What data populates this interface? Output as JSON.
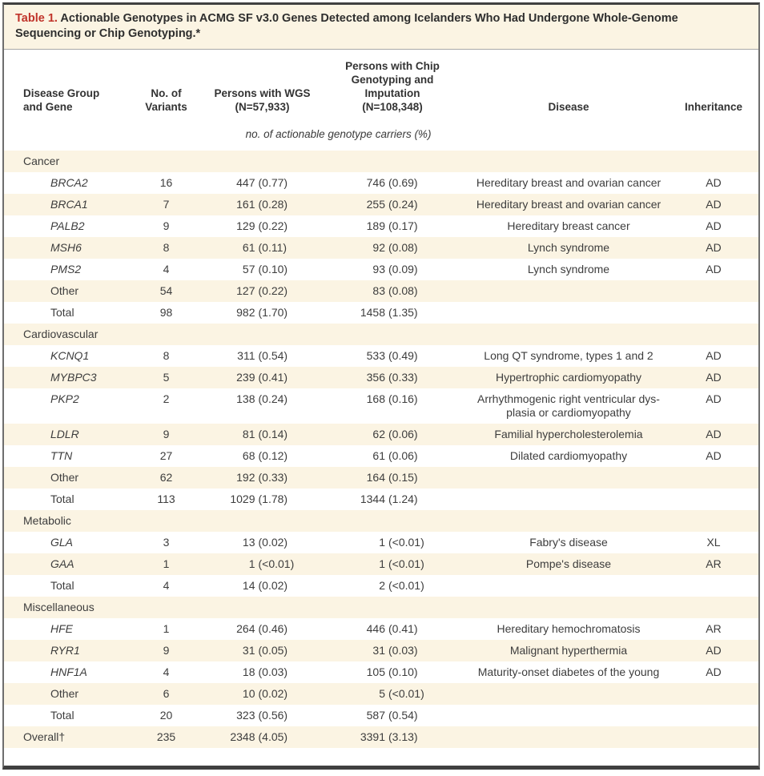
{
  "table": {
    "label": "Table 1.",
    "title": "Actionable Genotypes in ACMG SF v3.0 Genes Detected among Icelanders Who Had Undergone Whole-Genome Sequencing or Chip Genotyping.*",
    "columns": [
      {
        "key": "gene",
        "label": "Disease Group\nand Gene"
      },
      {
        "key": "variants",
        "label": "No. of\nVariants"
      },
      {
        "key": "wgs",
        "label": "Persons with WGS\n(N=57,933)"
      },
      {
        "key": "chip",
        "label": "Persons with Chip\nGenotyping and\nImputation\n(N=108,348)"
      },
      {
        "key": "disease",
        "label": "Disease"
      },
      {
        "key": "inheritance",
        "label": "Inheritance"
      }
    ],
    "units_note": "no. of actionable genotype carriers (%)",
    "sections": [
      {
        "name": "Cancer",
        "rows": [
          {
            "gene": "BRCA2",
            "italic": true,
            "variants": "16",
            "wgs": "447 (0.77)",
            "chip": "746 (0.69)",
            "disease": "Hereditary breast and ovarian cancer",
            "inheritance": "AD"
          },
          {
            "gene": "BRCA1",
            "italic": true,
            "variants": "7",
            "wgs": "161 (0.28)",
            "chip": "255 (0.24)",
            "disease": "Hereditary breast and ovarian cancer",
            "inheritance": "AD"
          },
          {
            "gene": "PALB2",
            "italic": true,
            "variants": "9",
            "wgs": "129 (0.22)",
            "chip": "189 (0.17)",
            "disease": "Hereditary breast cancer",
            "inheritance": "AD"
          },
          {
            "gene": "MSH6",
            "italic": true,
            "variants": "8",
            "wgs": "61 (0.11)",
            "chip": "92 (0.08)",
            "disease": "Lynch syndrome",
            "inheritance": "AD"
          },
          {
            "gene": "PMS2",
            "italic": true,
            "variants": "4",
            "wgs": "57 (0.10)",
            "chip": "93 (0.09)",
            "disease": "Lynch syndrome",
            "inheritance": "AD"
          },
          {
            "gene": "Other",
            "italic": false,
            "variants": "54",
            "wgs": "127 (0.22)",
            "chip": "83 (0.08)",
            "disease": "",
            "inheritance": ""
          },
          {
            "gene": "Total",
            "italic": false,
            "variants": "98",
            "wgs": "982 (1.70)",
            "chip": "1458 (1.35)",
            "disease": "",
            "inheritance": ""
          }
        ]
      },
      {
        "name": "Cardiovascular",
        "rows": [
          {
            "gene": "KCNQ1",
            "italic": true,
            "variants": "8",
            "wgs": "311 (0.54)",
            "chip": "533 (0.49)",
            "disease": "Long QT syndrome, types 1 and 2",
            "inheritance": "AD"
          },
          {
            "gene": "MYBPC3",
            "italic": true,
            "variants": "5",
            "wgs": "239 (0.41)",
            "chip": "356 (0.33)",
            "disease": "Hypertrophic cardiomyopathy",
            "inheritance": "AD"
          },
          {
            "gene": "PKP2",
            "italic": true,
            "variants": "2",
            "wgs": "138 (0.24)",
            "chip": "168 (0.16)",
            "disease": "Arrhythmogenic right ventricular dys-\nplasia or cardiomyopathy",
            "inheritance": "AD"
          },
          {
            "gene": "LDLR",
            "italic": true,
            "variants": "9",
            "wgs": "81 (0.14)",
            "chip": "62 (0.06)",
            "disease": "Familial hypercholesterolemia",
            "inheritance": "AD"
          },
          {
            "gene": "TTN",
            "italic": true,
            "variants": "27",
            "wgs": "68 (0.12)",
            "chip": "61 (0.06)",
            "disease": "Dilated cardiomyopathy",
            "inheritance": "AD"
          },
          {
            "gene": "Other",
            "italic": false,
            "variants": "62",
            "wgs": "192 (0.33)",
            "chip": "164 (0.15)",
            "disease": "",
            "inheritance": ""
          },
          {
            "gene": "Total",
            "italic": false,
            "variants": "113",
            "wgs": "1029 (1.78)",
            "chip": "1344 (1.24)",
            "disease": "",
            "inheritance": ""
          }
        ]
      },
      {
        "name": "Metabolic",
        "rows": [
          {
            "gene": "GLA",
            "italic": true,
            "variants": "3",
            "wgs": "13 (0.02)",
            "chip": "1 (<0.01)",
            "disease": "Fabry's disease",
            "inheritance": "XL"
          },
          {
            "gene": "GAA",
            "italic": true,
            "variants": "1",
            "wgs": "1 (<0.01)",
            "chip": "1 (<0.01)",
            "disease": "Pompe's disease",
            "inheritance": "AR"
          },
          {
            "gene": "Total",
            "italic": false,
            "variants": "4",
            "wgs": "14 (0.02)",
            "chip": "2 (<0.01)",
            "disease": "",
            "inheritance": ""
          }
        ]
      },
      {
        "name": "Miscellaneous",
        "rows": [
          {
            "gene": "HFE",
            "italic": true,
            "variants": "1",
            "wgs": "264 (0.46)",
            "chip": "446 (0.41)",
            "disease": "Hereditary hemochromatosis",
            "inheritance": "AR"
          },
          {
            "gene": "RYR1",
            "italic": true,
            "variants": "9",
            "wgs": "31 (0.05)",
            "chip": "31 (0.03)",
            "disease": "Malignant hyperthermia",
            "inheritance": "AD"
          },
          {
            "gene": "HNF1A",
            "italic": true,
            "variants": "4",
            "wgs": "18 (0.03)",
            "chip": "105 (0.10)",
            "disease": "Maturity-onset diabetes of the young",
            "inheritance": "AD"
          },
          {
            "gene": "Other",
            "italic": false,
            "variants": "6",
            "wgs": "10 (0.02)",
            "chip": "5 (<0.01)",
            "disease": "",
            "inheritance": ""
          },
          {
            "gene": "Total",
            "italic": false,
            "variants": "20",
            "wgs": "323 (0.56)",
            "chip": "587 (0.54)",
            "disease": "",
            "inheritance": ""
          }
        ]
      }
    ],
    "overall": {
      "label": "Overall†",
      "variants": "235",
      "wgs": "2348 (4.05)",
      "chip": "3391 (3.13)",
      "disease": "",
      "inheritance": ""
    },
    "colors": {
      "accent_red": "#c0332a",
      "row_cream": "#fbf4e3",
      "border_dark": "#404040",
      "text": "#3d3d3d"
    }
  }
}
